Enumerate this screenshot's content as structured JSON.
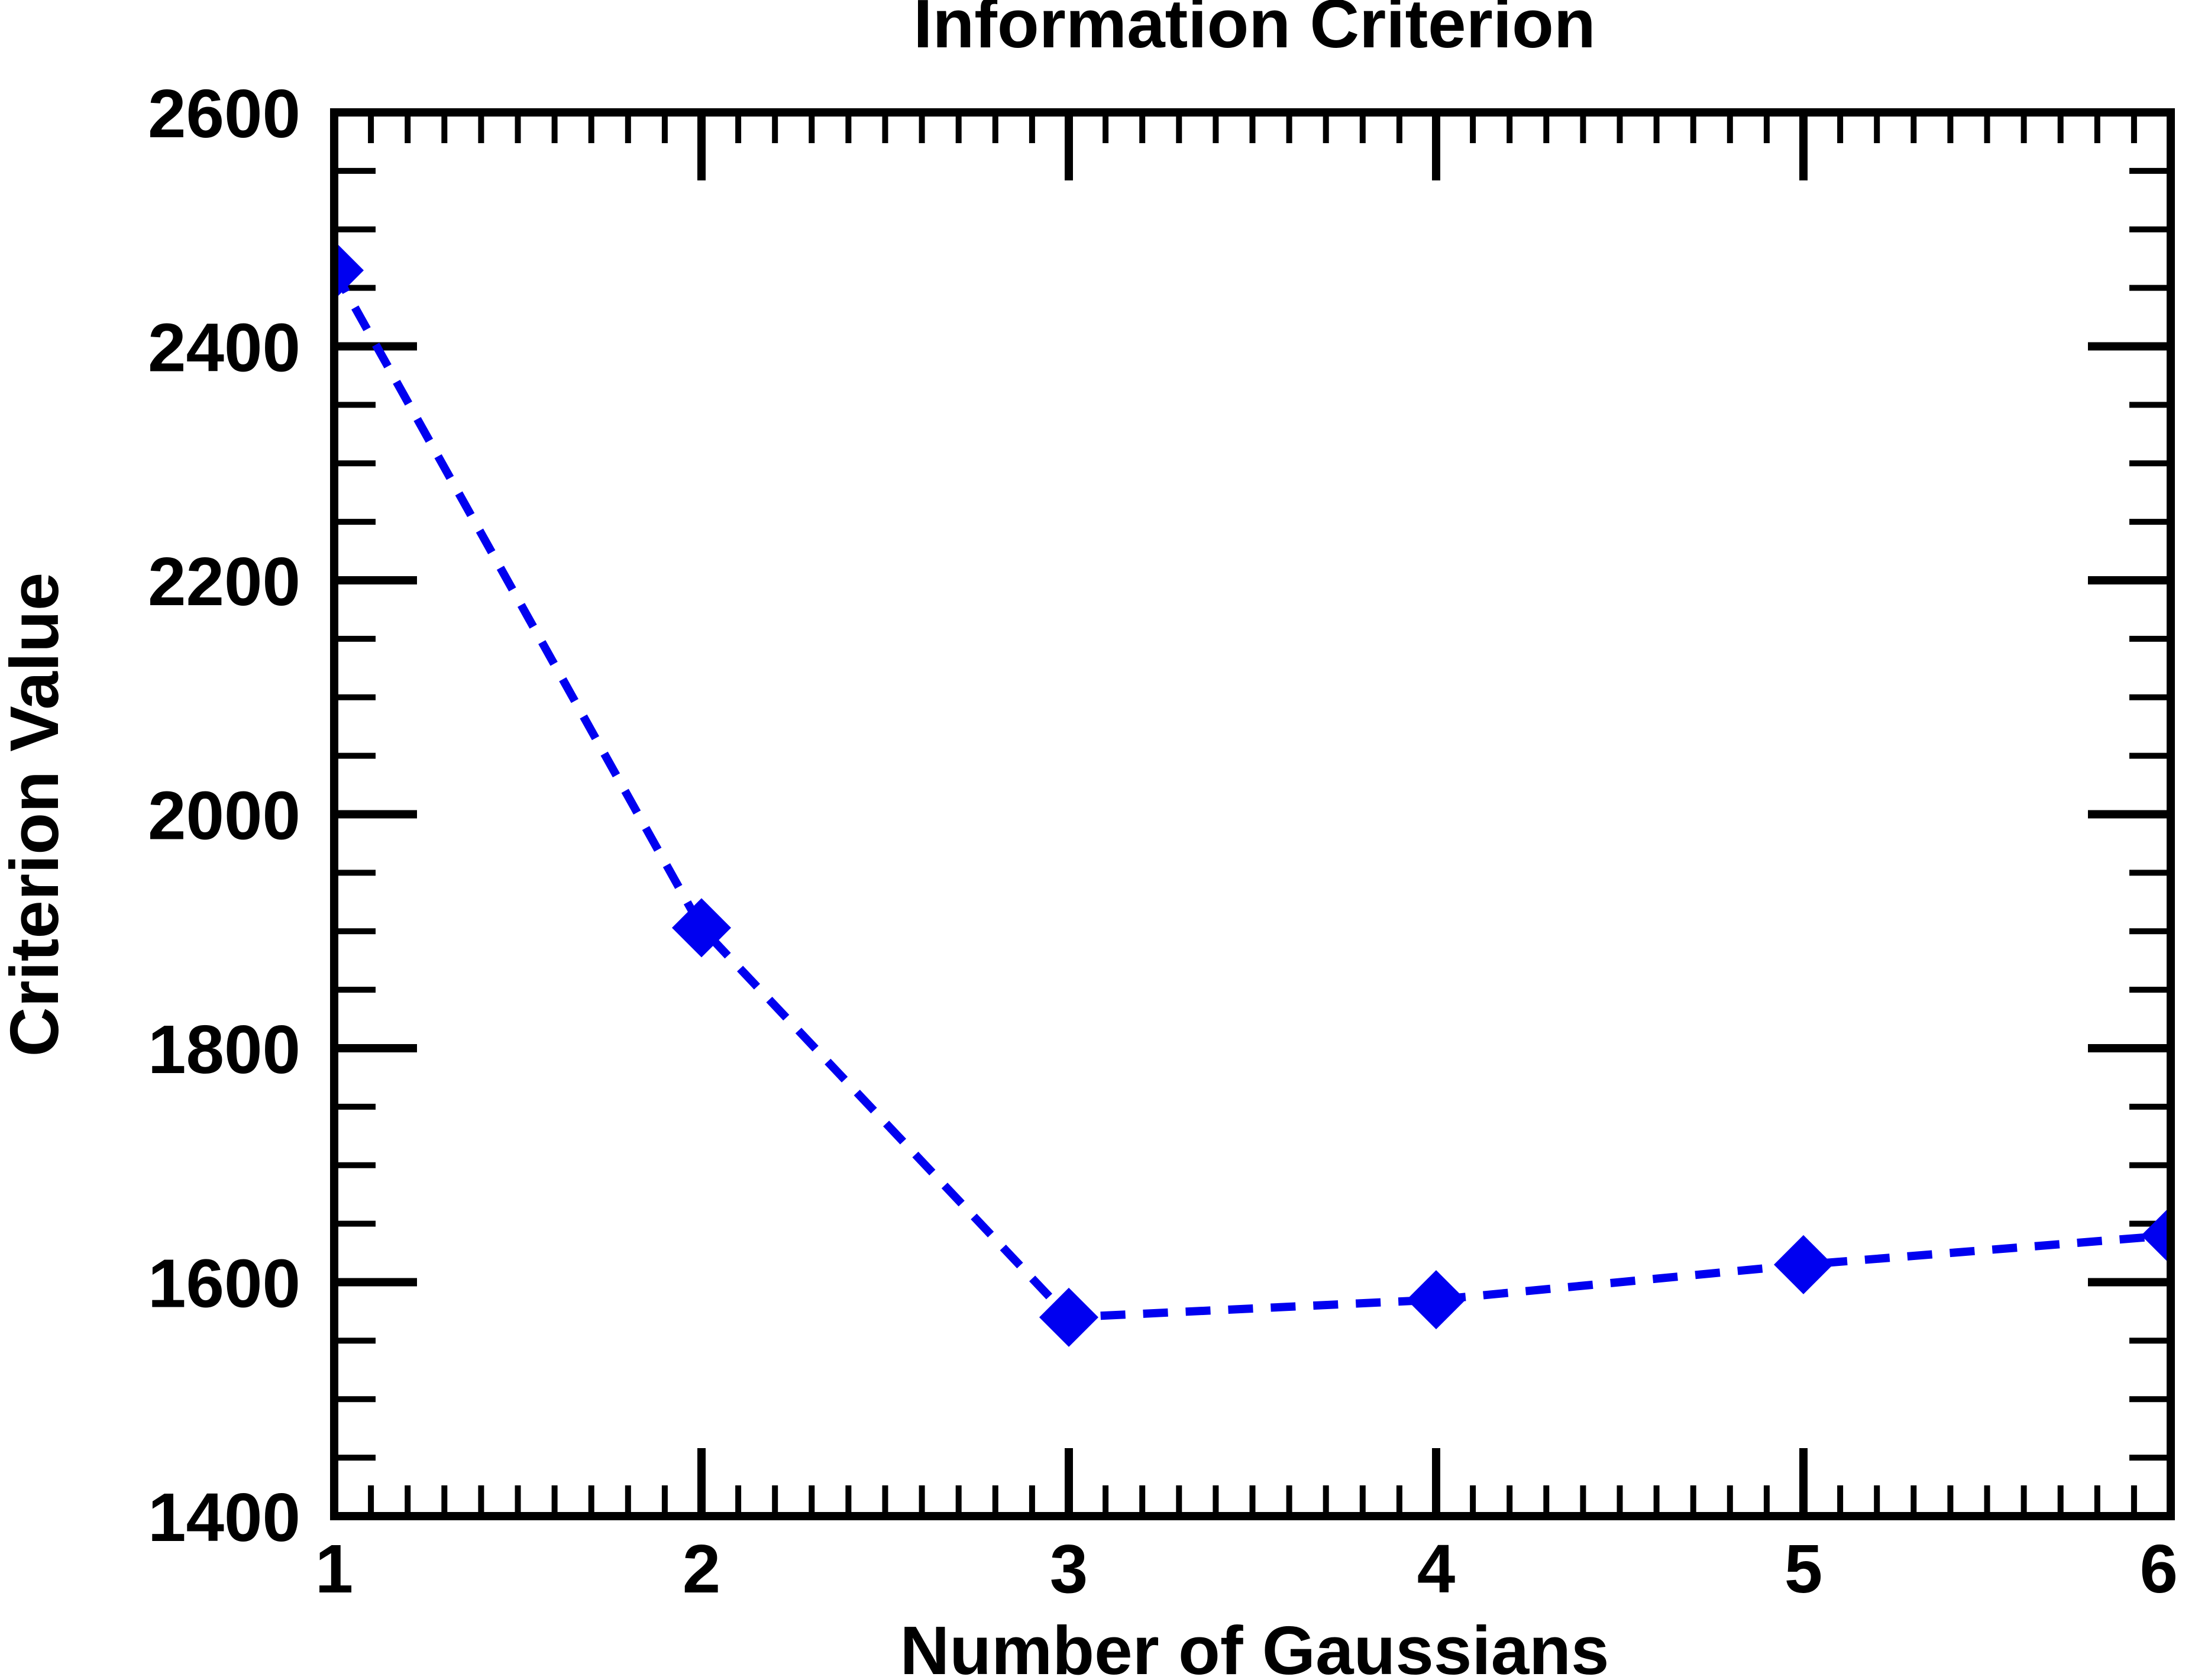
{
  "chart_data": {
    "type": "line",
    "title": "Information Criterion",
    "xlabel": "Number of Gaussians",
    "ylabel": "Criterion Value",
    "xlim": [
      1,
      6
    ],
    "ylim": [
      1400,
      2600
    ],
    "x_ticks": [
      1,
      2,
      3,
      4,
      5,
      6
    ],
    "y_ticks": [
      1400,
      1600,
      1800,
      2000,
      2200,
      2400,
      2600
    ],
    "x_minor_step": 0.1,
    "y_minor_step": 50,
    "grid": false,
    "legend": "none",
    "series": [
      {
        "x": [
          1,
          2,
          3,
          4,
          5,
          6
        ],
        "y": [
          2465,
          1903,
          1570,
          1585,
          1615,
          1640
        ],
        "color": "#0000f0",
        "line_style": "dashed",
        "marker": "diamond"
      }
    ]
  }
}
